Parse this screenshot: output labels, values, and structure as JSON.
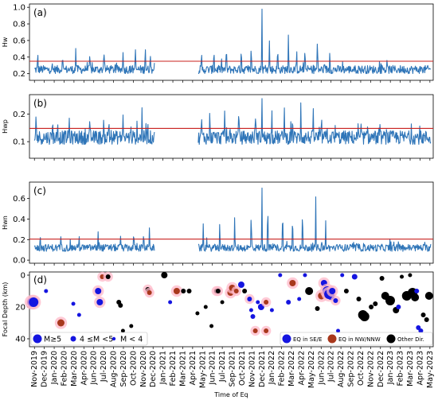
{
  "chart_data": [
    {
      "panel": "(a)",
      "type": "line",
      "ylabel": "Hw",
      "yticks": [
        0.2,
        0.4,
        0.6,
        0.8,
        1.0
      ],
      "ylim": [
        0.12,
        1.04
      ],
      "threshold": 0.35,
      "baseline": 0.25,
      "noise": 0.05,
      "spikes_seg1": [
        [
          2019.92,
          0.5
        ],
        [
          2020.22,
          0.45
        ],
        [
          2020.38,
          0.53
        ],
        [
          2020.55,
          0.48
        ],
        [
          2020.72,
          0.52
        ],
        [
          2020.95,
          0.49
        ],
        [
          2021.1,
          0.55
        ],
        [
          2021.22,
          0.57
        ],
        [
          2021.28,
          0.47
        ]
      ],
      "spikes_seg2": [
        [
          2021.9,
          0.5
        ],
        [
          2022.05,
          0.53
        ],
        [
          2022.2,
          0.58
        ],
        [
          2022.38,
          0.55
        ],
        [
          2022.5,
          0.58
        ],
        [
          2022.63,
          1.0
        ],
        [
          2022.72,
          0.62
        ],
        [
          2022.82,
          0.56
        ],
        [
          2022.95,
          0.73
        ],
        [
          2023.05,
          0.52
        ],
        [
          2023.15,
          0.55
        ],
        [
          2023.3,
          0.68
        ],
        [
          2023.45,
          0.5
        ]
      ],
      "grid": false
    },
    {
      "panel": "(b)",
      "type": "line",
      "ylabel": "Hwp",
      "yticks": [
        0.1,
        0.2
      ],
      "ylim": [
        0.04,
        0.27
      ],
      "threshold": 0.148,
      "baseline": 0.115,
      "noise": 0.025,
      "spikes_seg1": [
        [
          2019.9,
          0.22
        ],
        [
          2020.1,
          0.19
        ],
        [
          2020.3,
          0.2
        ],
        [
          2020.55,
          0.2
        ],
        [
          2020.78,
          0.19
        ],
        [
          2020.95,
          0.21
        ],
        [
          2021.12,
          0.18
        ],
        [
          2021.18,
          0.23
        ],
        [
          2021.25,
          0.18
        ]
      ],
      "spikes_seg2": [
        [
          2021.9,
          0.21
        ],
        [
          2022.0,
          0.23
        ],
        [
          2022.18,
          0.23
        ],
        [
          2022.35,
          0.24
        ],
        [
          2022.55,
          0.21
        ],
        [
          2022.63,
          0.26
        ],
        [
          2022.75,
          0.22
        ],
        [
          2022.9,
          0.24
        ],
        [
          2023.0,
          0.2
        ],
        [
          2023.1,
          0.25
        ],
        [
          2023.25,
          0.22
        ],
        [
          2023.35,
          0.21
        ]
      ],
      "grid": false
    },
    {
      "panel": "(c)",
      "type": "line",
      "ylabel": "Hwn",
      "yticks": [
        0.0,
        0.2,
        0.4,
        0.6
      ],
      "ylim": [
        -0.03,
        0.76
      ],
      "threshold": 0.205,
      "baseline": 0.12,
      "noise": 0.035,
      "spikes_seg1": [
        [
          2019.95,
          0.27
        ],
        [
          2020.2,
          0.25
        ],
        [
          2020.42,
          0.26
        ],
        [
          2020.65,
          0.28
        ],
        [
          2020.92,
          0.25
        ],
        [
          2021.08,
          0.3
        ],
        [
          2021.2,
          0.29
        ],
        [
          2021.27,
          0.32
        ]
      ],
      "spikes_seg2": [
        [
          2021.92,
          0.36
        ],
        [
          2022.12,
          0.4
        ],
        [
          2022.3,
          0.45
        ],
        [
          2022.5,
          0.52
        ],
        [
          2022.63,
          0.72
        ],
        [
          2022.7,
          0.6
        ],
        [
          2022.88,
          0.55
        ],
        [
          2023.0,
          0.48
        ],
        [
          2023.12,
          0.55
        ],
        [
          2023.28,
          0.62
        ],
        [
          2023.4,
          0.4
        ]
      ],
      "grid": false
    },
    {
      "panel": "(d)",
      "type": "scatter",
      "xlabel": "Time of Eq",
      "ylabel": "Focal Depth (km)",
      "yticks": [
        0,
        20,
        40
      ],
      "ylim": [
        45,
        -2
      ],
      "legend_size": [
        "M≥5",
        "4 ≤M <5",
        "M < 4"
      ],
      "legend_direction": [
        "EQ in SE/E",
        "EQ in NW/NNW",
        "Other Dir."
      ],
      "colors": {
        "SE/E": "#1515e0",
        "NW/NNW": "#a8381c",
        "Other": "#000000",
        "halo": "#ffb8c8"
      },
      "points": [
        [
          2019.85,
          17,
          "SE/E",
          6.0,
          true
        ],
        [
          2019.87,
          17,
          "SE/E",
          6.0,
          true
        ],
        [
          2020.02,
          10,
          "SE/E",
          2.5,
          false
        ],
        [
          2020.2,
          30,
          "NW/NNW",
          4.5,
          true
        ],
        [
          2020.35,
          18,
          "SE/E",
          2.5,
          false
        ],
        [
          2020.42,
          25,
          "SE/E",
          2.5,
          false
        ],
        [
          2020.65,
          10,
          "SE/E",
          4.0,
          true
        ],
        [
          2020.67,
          17,
          "SE/E",
          4.0,
          true
        ],
        [
          2020.7,
          1,
          "NW/NNW",
          3.0,
          true
        ],
        [
          2020.77,
          1,
          "Other",
          3.0,
          true
        ],
        [
          2020.9,
          17,
          "Other",
          3.0,
          false
        ],
        [
          2020.92,
          19,
          "Other",
          3.0,
          false
        ],
        [
          2020.95,
          35,
          "Other",
          2.5,
          false
        ],
        [
          2021.05,
          32,
          "Other",
          2.5,
          false
        ],
        [
          2021.25,
          9,
          "Other",
          3.0,
          true
        ],
        [
          2021.27,
          11,
          "NW/NNW",
          3.0,
          true
        ],
        [
          2021.45,
          0,
          "Other",
          4.0,
          false
        ],
        [
          2021.52,
          17,
          "SE/E",
          2.5,
          false
        ],
        [
          2021.6,
          10,
          "NW/NNW",
          4.0,
          true
        ],
        [
          2021.68,
          10,
          "Other",
          3.0,
          false
        ],
        [
          2021.75,
          10,
          "Other",
          3.0,
          false
        ],
        [
          2021.85,
          24,
          "Other",
          2.5,
          false
        ],
        [
          2021.95,
          20,
          "Other",
          2.5,
          false
        ],
        [
          2022.02,
          32,
          "Other",
          2.5,
          false
        ],
        [
          2022.08,
          10,
          "Other",
          3.0,
          true
        ],
        [
          2022.1,
          10,
          "Other",
          3.0,
          true
        ],
        [
          2022.15,
          17,
          "Other",
          2.5,
          false
        ],
        [
          2022.25,
          11,
          "NW/NNW",
          4.0,
          true
        ],
        [
          2022.27,
          8,
          "NW/NNW",
          4.0,
          true
        ],
        [
          2022.32,
          10,
          "NW/NNW",
          3.0,
          true
        ],
        [
          2022.38,
          6,
          "SE/E",
          4.0,
          false
        ],
        [
          2022.42,
          10,
          "Other",
          3.0,
          false
        ],
        [
          2022.48,
          15,
          "SE/E",
          3.0,
          true
        ],
        [
          2022.5,
          22,
          "SE/E",
          2.5,
          false
        ],
        [
          2022.52,
          26,
          "SE/E",
          3.0,
          false
        ],
        [
          2022.55,
          35,
          "NW/NNW",
          3.0,
          true
        ],
        [
          2022.58,
          17,
          "SE/E",
          2.5,
          false
        ],
        [
          2022.62,
          20,
          "SE/E",
          4.0,
          false
        ],
        [
          2022.68,
          35,
          "NW/NNW",
          3.0,
          true
        ],
        [
          2022.68,
          17,
          "NW/NNW",
          3.0,
          true
        ],
        [
          2022.75,
          22,
          "SE/E",
          2.5,
          false
        ],
        [
          2022.85,
          0,
          "SE/E",
          2.5,
          false
        ],
        [
          2022.95,
          17,
          "SE/E",
          3.0,
          false
        ],
        [
          2023.0,
          5,
          "NW/NNW",
          4.0,
          true
        ],
        [
          2023.08,
          15,
          "SE/E",
          2.5,
          false
        ],
        [
          2023.15,
          0,
          "SE/E",
          2.5,
          false
        ],
        [
          2023.2,
          10,
          "Other",
          5.0,
          false
        ],
        [
          2023.3,
          21,
          "Other",
          3.0,
          false
        ],
        [
          2023.35,
          13,
          "NW/NNW",
          4.5,
          true
        ],
        [
          2023.38,
          5,
          "SE/E",
          4.0,
          true
        ],
        [
          2023.42,
          10,
          "SE/E",
          6.0,
          true
        ],
        [
          2023.44,
          12,
          "SE/E",
          6.0,
          true
        ],
        [
          2023.46,
          13,
          "SE/E",
          5.0,
          false
        ],
        [
          2023.48,
          10,
          "SE/E",
          4.0,
          true
        ],
        [
          2023.52,
          16,
          "SE/E",
          3.0,
          true
        ],
        [
          2023.55,
          35,
          "SE/E",
          2.5,
          false
        ],
        [
          2023.6,
          0,
          "SE/E",
          2.5,
          false
        ],
        [
          2023.65,
          10,
          "Other",
          3.0,
          false
        ],
        [
          2023.75,
          1,
          "SE/E",
          3.5,
          false
        ],
        [
          2023.8,
          15,
          "Other",
          3.0,
          false
        ],
        [
          2023.85,
          25,
          "Other",
          6.0,
          false
        ],
        [
          2023.87,
          26,
          "Other",
          6.0,
          false
        ],
        [
          2023.95,
          20,
          "Other",
          3.0,
          false
        ],
        [
          2024.0,
          18,
          "Other",
          3.0,
          false
        ],
        [
          2024.08,
          2,
          "Other",
          3.0,
          false
        ],
        [
          2024.12,
          13,
          "Other",
          5.0,
          false
        ],
        [
          2024.18,
          16,
          "Other",
          6.0,
          false
        ],
        [
          2024.25,
          22,
          "Other",
          4.0,
          false
        ],
        [
          2024.28,
          20,
          "SE/E",
          3.0,
          false
        ],
        [
          2024.32,
          1,
          "Other",
          2.5,
          false
        ],
        [
          2024.38,
          13,
          "Other",
          6.0,
          false
        ],
        [
          2024.42,
          0,
          "Other",
          2.5,
          false
        ],
        [
          2024.45,
          11,
          "Other",
          6.0,
          false
        ],
        [
          2024.48,
          14,
          "Other",
          5.0,
          false
        ],
        [
          2024.5,
          10,
          "SE/E",
          3.0,
          false
        ],
        [
          2024.52,
          33,
          "SE/E",
          3.0,
          false
        ],
        [
          2024.55,
          35,
          "SE/E",
          3.0,
          false
        ],
        [
          2024.58,
          25,
          "Other",
          3.0,
          false
        ],
        [
          2024.62,
          28,
          "Other",
          3.0,
          false
        ],
        [
          2024.65,
          13,
          "Other",
          5.0,
          false
        ]
      ]
    }
  ],
  "x_axis": {
    "xlabel": "Time of Eq",
    "ticks": [
      "Nov-2019",
      "Dec-2019",
      "Jan-2020",
      "Feb-2020",
      "Mar-2020",
      "Apr-2020",
      "Jun-2020",
      "Jul-2020",
      "Aug-2020",
      "Sep-2020",
      "Oct-2020",
      "Nov-2020",
      "Dec-2020",
      "Jan-2021",
      "Feb-2021",
      "Mar-2021",
      "Apr-2021",
      "May-2021",
      "Jun-2021",
      "Jul-2021",
      "Sep-2021",
      "Oct-2021",
      "Nov-2021",
      "Dec-2021",
      "Jan-2022",
      "Feb-2022",
      "Mar-2022",
      "Apr-2022",
      "May-2022",
      "Jun-2022",
      "Jul-2022",
      "Aug-2022",
      "Sep-2022",
      "Oct-2022",
      "Nov-2022",
      "Dec-2022",
      "Jan-2023",
      "Feb-2023",
      "Mar-2023",
      "Apr-2023",
      "May-2023"
    ]
  }
}
